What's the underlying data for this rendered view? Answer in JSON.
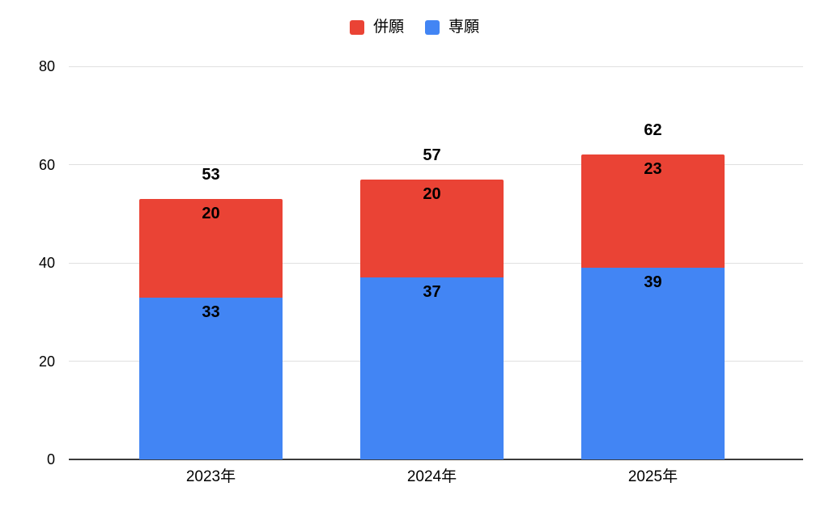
{
  "chart_data": {
    "type": "bar",
    "stacked": true,
    "title": "",
    "xlabel": "",
    "ylabel": "",
    "categories": [
      "2023年",
      "2024年",
      "2025年"
    ],
    "series": [
      {
        "name": "併願",
        "slug": "heigan",
        "color": "#EA4335",
        "values": [
          20,
          20,
          23
        ]
      },
      {
        "name": "専願",
        "slug": "sengan",
        "color": "#4285F4",
        "values": [
          33,
          37,
          39
        ]
      }
    ],
    "stack_order_bottom_to_top": [
      "専願",
      "併願"
    ],
    "totals": [
      53,
      57,
      62
    ],
    "ylim": [
      0,
      80
    ],
    "yticks": [
      0,
      20,
      40,
      60,
      80
    ],
    "grid": true,
    "legend_position": "top",
    "colors": {
      "gridline": "#e0e0e0",
      "axis_baseline": "#3c3c3c",
      "label_text": "#000000",
      "background": "#ffffff"
    }
  }
}
